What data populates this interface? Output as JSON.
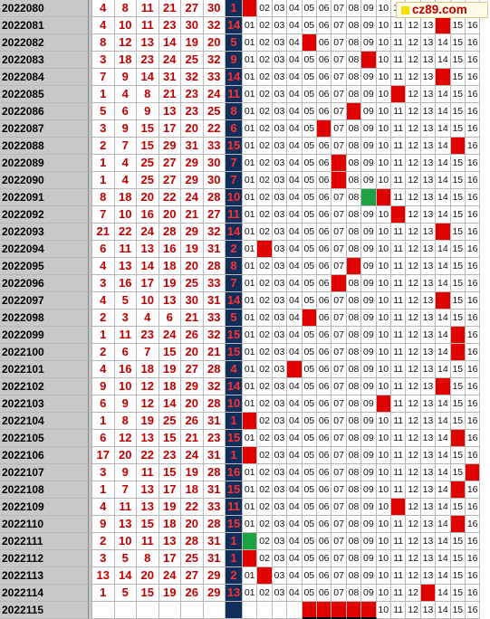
{
  "site_logo": "cz89.com",
  "colors": {
    "hit": "#e00000",
    "sum_bg": "#0f2f5a",
    "sum_text": "#ff3030",
    "number_text": "#c00000",
    "issue_bg": "#c8c8c8",
    "marker_green": "#1aa340"
  },
  "chart_data": {
    "type": "table",
    "trend_labels": [
      "01",
      "02",
      "03",
      "04",
      "05",
      "06",
      "07",
      "08",
      "09",
      "10",
      "11",
      "12",
      "13",
      "14",
      "15",
      "16"
    ],
    "rows": [
      {
        "issue": "2022080",
        "numbers": [
          4,
          8,
          11,
          21,
          27,
          30
        ],
        "sum": "1",
        "hit": 1
      },
      {
        "issue": "2022081",
        "numbers": [
          4,
          10,
          11,
          23,
          30,
          32
        ],
        "sum": "14",
        "hit": 14
      },
      {
        "issue": "2022082",
        "numbers": [
          8,
          12,
          13,
          14,
          19,
          20
        ],
        "sum": "5",
        "hit": 5
      },
      {
        "issue": "2022083",
        "numbers": [
          3,
          18,
          23,
          24,
          25,
          32
        ],
        "sum": "9",
        "hit": 9
      },
      {
        "issue": "2022084",
        "numbers": [
          7,
          9,
          14,
          31,
          32,
          33
        ],
        "sum": "14",
        "hit": 14
      },
      {
        "issue": "2022085",
        "numbers": [
          1,
          4,
          8,
          21,
          23,
          24
        ],
        "sum": "11",
        "hit": 11
      },
      {
        "issue": "2022086",
        "numbers": [
          5,
          6,
          9,
          13,
          23,
          25
        ],
        "sum": "8",
        "hit": 8
      },
      {
        "issue": "2022087",
        "numbers": [
          3,
          9,
          15,
          17,
          20,
          22
        ],
        "sum": "6",
        "hit": 6
      },
      {
        "issue": "2022088",
        "numbers": [
          2,
          7,
          15,
          29,
          31,
          33
        ],
        "sum": "15",
        "hit": 15
      },
      {
        "issue": "2022089",
        "numbers": [
          1,
          4,
          25,
          27,
          29,
          30
        ],
        "sum": "7",
        "hit": 7
      },
      {
        "issue": "2022090",
        "numbers": [
          1,
          4,
          25,
          27,
          29,
          30
        ],
        "sum": "7",
        "hit": 7
      },
      {
        "issue": "2022091",
        "numbers": [
          8,
          18,
          20,
          22,
          24,
          28
        ],
        "sum": "10",
        "hit": 10
      },
      {
        "issue": "2022092",
        "numbers": [
          7,
          10,
          16,
          20,
          21,
          27
        ],
        "sum": "11",
        "hit": 11
      },
      {
        "issue": "2022093",
        "numbers": [
          21,
          22,
          24,
          28,
          29,
          32
        ],
        "sum": "14",
        "hit": 14
      },
      {
        "issue": "2022094",
        "numbers": [
          6,
          11,
          13,
          16,
          19,
          31
        ],
        "sum": "2",
        "hit": 2
      },
      {
        "issue": "2022095",
        "numbers": [
          4,
          13,
          14,
          18,
          20,
          28
        ],
        "sum": "8",
        "hit": 8
      },
      {
        "issue": "2022096",
        "numbers": [
          3,
          16,
          17,
          19,
          25,
          33
        ],
        "sum": "7",
        "hit": 7
      },
      {
        "issue": "2022097",
        "numbers": [
          4,
          5,
          10,
          13,
          30,
          31
        ],
        "sum": "14",
        "hit": 14
      },
      {
        "issue": "2022098",
        "numbers": [
          2,
          3,
          4,
          6,
          21,
          33
        ],
        "sum": "5",
        "hit": 5
      },
      {
        "issue": "2022099",
        "numbers": [
          1,
          11,
          23,
          24,
          26,
          32
        ],
        "sum": "15",
        "hit": 15
      },
      {
        "issue": "2022100",
        "numbers": [
          2,
          6,
          7,
          15,
          20,
          21
        ],
        "sum": "15",
        "hit": 15
      },
      {
        "issue": "2022101",
        "numbers": [
          4,
          16,
          18,
          19,
          27,
          28
        ],
        "sum": "4",
        "hit": 4
      },
      {
        "issue": "2022102",
        "numbers": [
          9,
          10,
          12,
          18,
          29,
          32
        ],
        "sum": "14",
        "hit": 14
      },
      {
        "issue": "2022103",
        "numbers": [
          6,
          9,
          12,
          14,
          20,
          28
        ],
        "sum": "10",
        "hit": 10
      },
      {
        "issue": "2022104",
        "numbers": [
          1,
          8,
          19,
          25,
          26,
          31
        ],
        "sum": "1",
        "hit": 1
      },
      {
        "issue": "2022105",
        "numbers": [
          6,
          12,
          13,
          15,
          21,
          23
        ],
        "sum": "15",
        "hit": 15
      },
      {
        "issue": "2022106",
        "numbers": [
          17,
          20,
          22,
          23,
          24,
          31
        ],
        "sum": "1",
        "hit": 1
      },
      {
        "issue": "2022107",
        "numbers": [
          3,
          9,
          11,
          15,
          19,
          28
        ],
        "sum": "16",
        "hit": 16
      },
      {
        "issue": "2022108",
        "numbers": [
          1,
          7,
          13,
          17,
          18,
          31
        ],
        "sum": "15",
        "hit": 15
      },
      {
        "issue": "2022109",
        "numbers": [
          4,
          11,
          13,
          19,
          22,
          33
        ],
        "sum": "11",
        "hit": 11
      },
      {
        "issue": "2022110",
        "numbers": [
          9,
          13,
          15,
          18,
          20,
          28
        ],
        "sum": "15",
        "hit": 15
      },
      {
        "issue": "2022111",
        "numbers": [
          2,
          10,
          11,
          13,
          28,
          31
        ],
        "sum": "1",
        "hit": 1
      },
      {
        "issue": "2022112",
        "numbers": [
          3,
          5,
          8,
          17,
          25,
          31
        ],
        "sum": "1",
        "hit": 1
      },
      {
        "issue": "2022113",
        "numbers": [
          13,
          14,
          20,
          24,
          27,
          29
        ],
        "sum": "2",
        "hit": 2
      },
      {
        "issue": "2022114",
        "numbers": [
          1,
          5,
          15,
          19,
          26,
          29
        ],
        "sum": "13",
        "hit": 13
      },
      {
        "issue": "2022115",
        "numbers": [
          "",
          "",
          "",
          "",
          "",
          ""
        ],
        "sum": "",
        "hit": null
      }
    ],
    "green_markers": [
      {
        "row": 11,
        "col": 9
      },
      {
        "row": 31,
        "col": 1
      }
    ],
    "current_red_cols": [
      5,
      6,
      7,
      8,
      9
    ]
  }
}
